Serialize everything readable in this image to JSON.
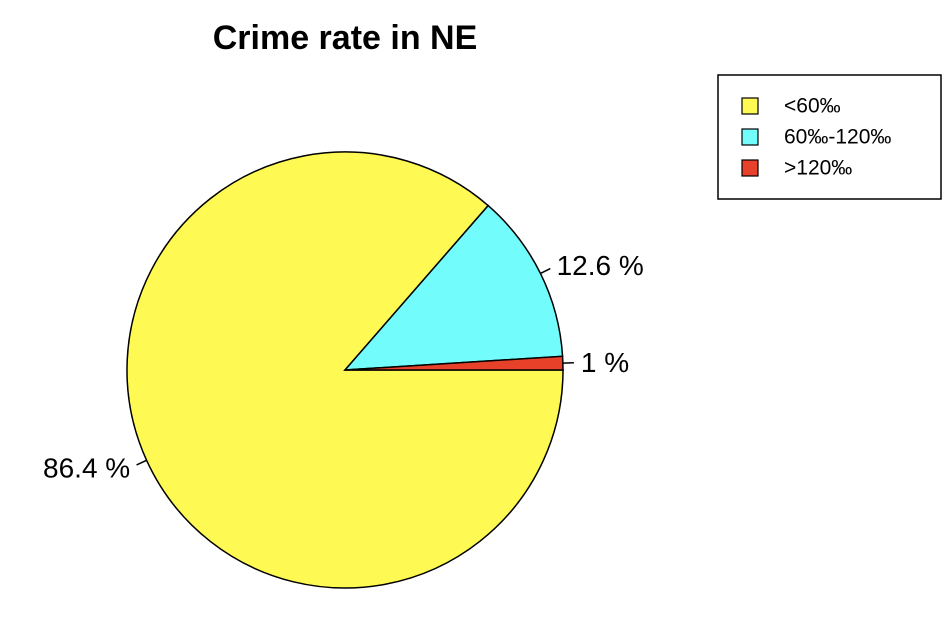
{
  "chart_data": {
    "type": "pie",
    "title": "Crime rate in NE",
    "slices": [
      {
        "label": "<60‰",
        "value": 86.4,
        "value_label": "86.4 %",
        "color": "#FFF953"
      },
      {
        "label": "60‰-120‰",
        "value": 12.6,
        "value_label": "12.6 %",
        "color": "#72FCFC"
      },
      {
        "label": ">120‰",
        "value": 1.0,
        "value_label": "1 %",
        "color": "#E8412A"
      }
    ],
    "start_angle_deg": 0,
    "direction": "clockwise",
    "legend": {
      "position": "top-right",
      "entries": [
        "<60‰",
        "60‰-120‰",
        ">120‰"
      ]
    }
  }
}
